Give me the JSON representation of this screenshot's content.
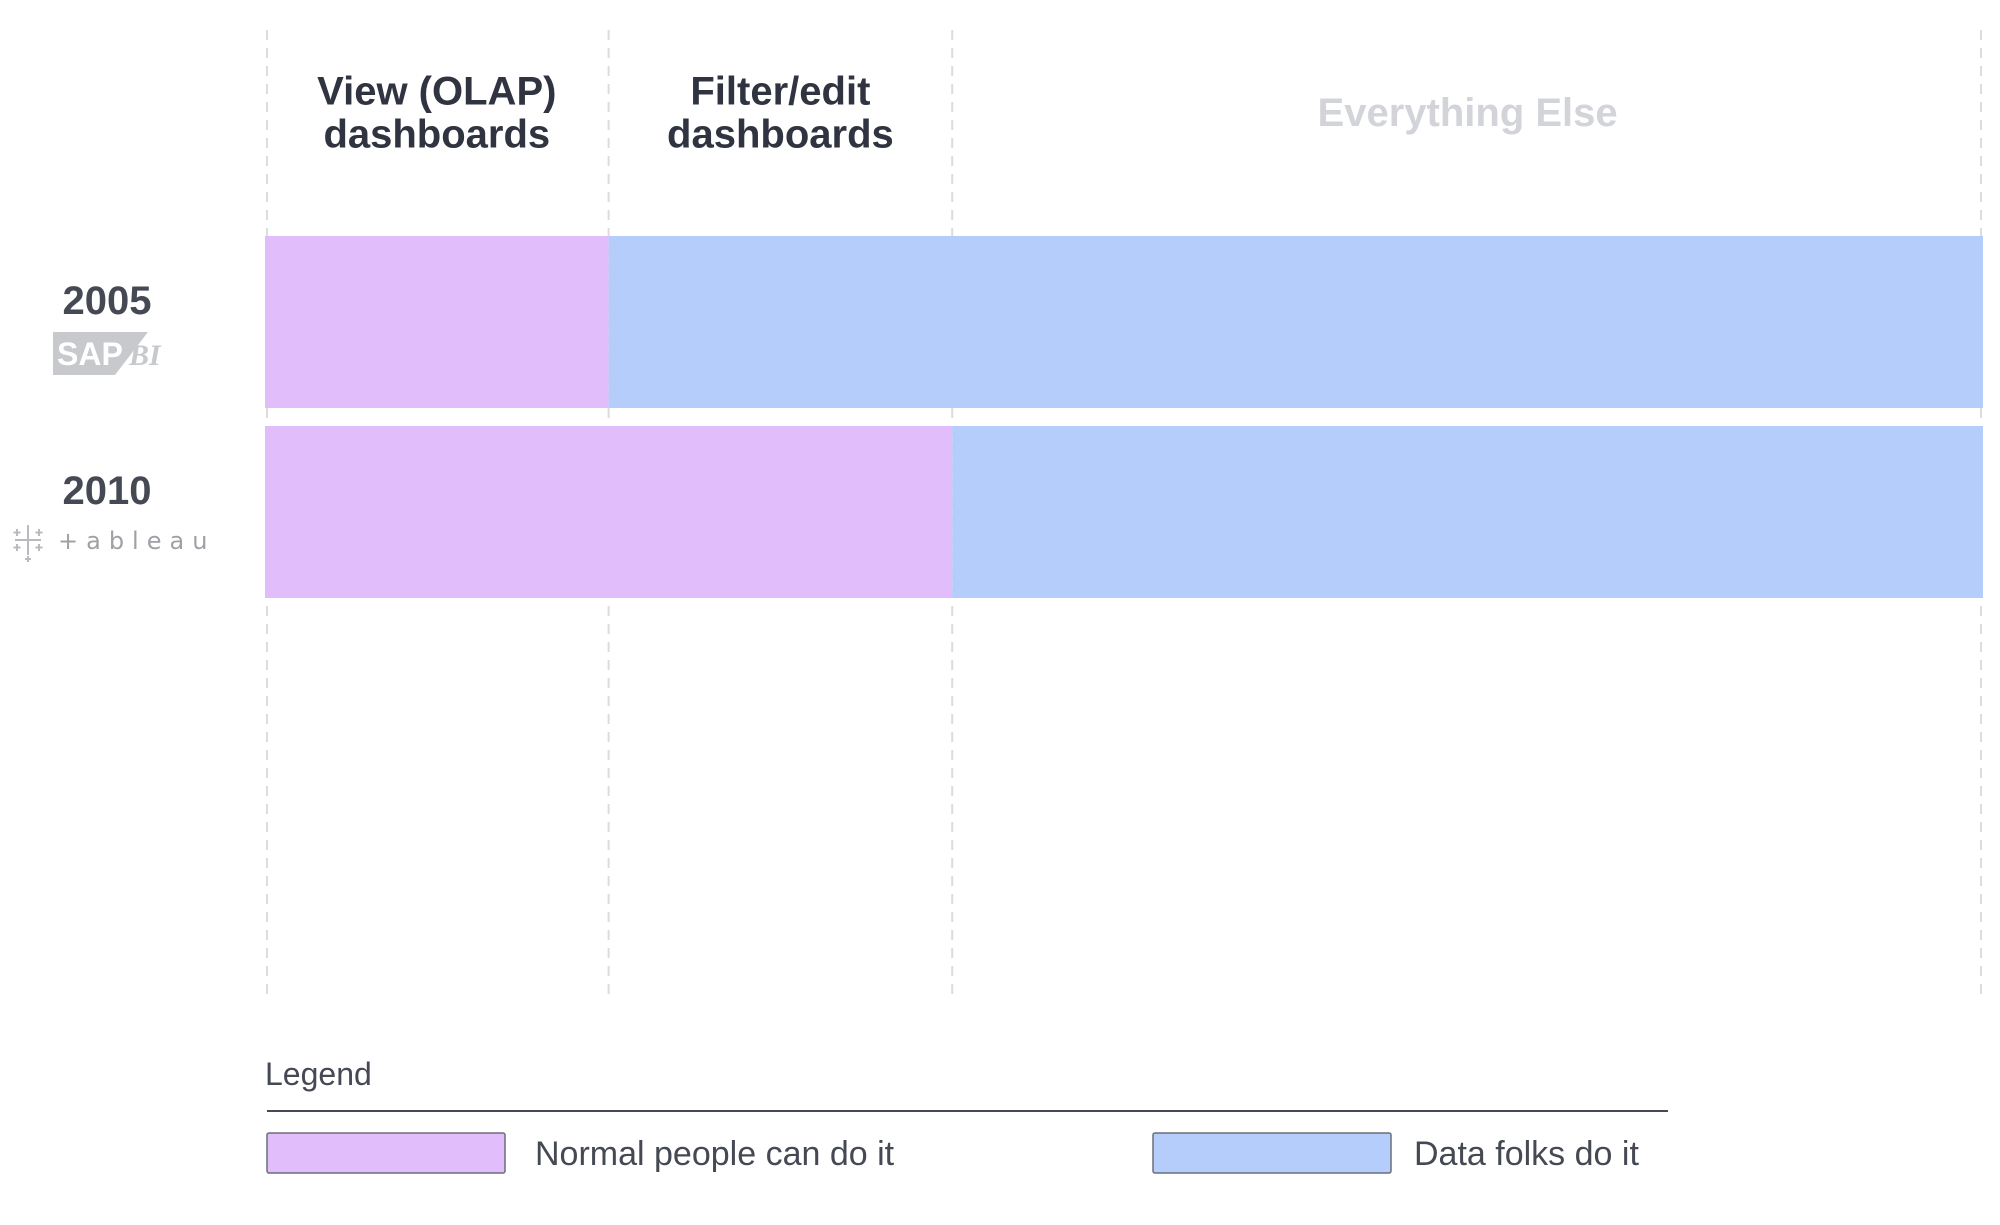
{
  "chart_data": {
    "type": "bar",
    "orientation": "horizontal",
    "stacked": true,
    "columns": [
      {
        "label_lines": [
          "View (OLAP)",
          "dashboards"
        ],
        "muted": false
      },
      {
        "label_lines": [
          "Filter/edit",
          "dashboards"
        ],
        "muted": false
      },
      {
        "label_lines": [
          "Everything Else"
        ],
        "muted": true
      }
    ],
    "column_units": [
      1,
      1,
      3
    ],
    "categories": [
      "2005",
      "2010"
    ],
    "row_logos": [
      "SAP BI",
      "tableau"
    ],
    "series": [
      {
        "name": "Normal people can do it",
        "color": "#e2bdfb",
        "values": [
          1,
          2
        ]
      },
      {
        "name": "Data folks do it",
        "color": "#b5cdfb",
        "values": [
          4,
          3
        ]
      }
    ],
    "xlim": [
      0,
      5
    ],
    "legend": {
      "title": "Legend",
      "placement": "bottom"
    },
    "grid": true
  }
}
